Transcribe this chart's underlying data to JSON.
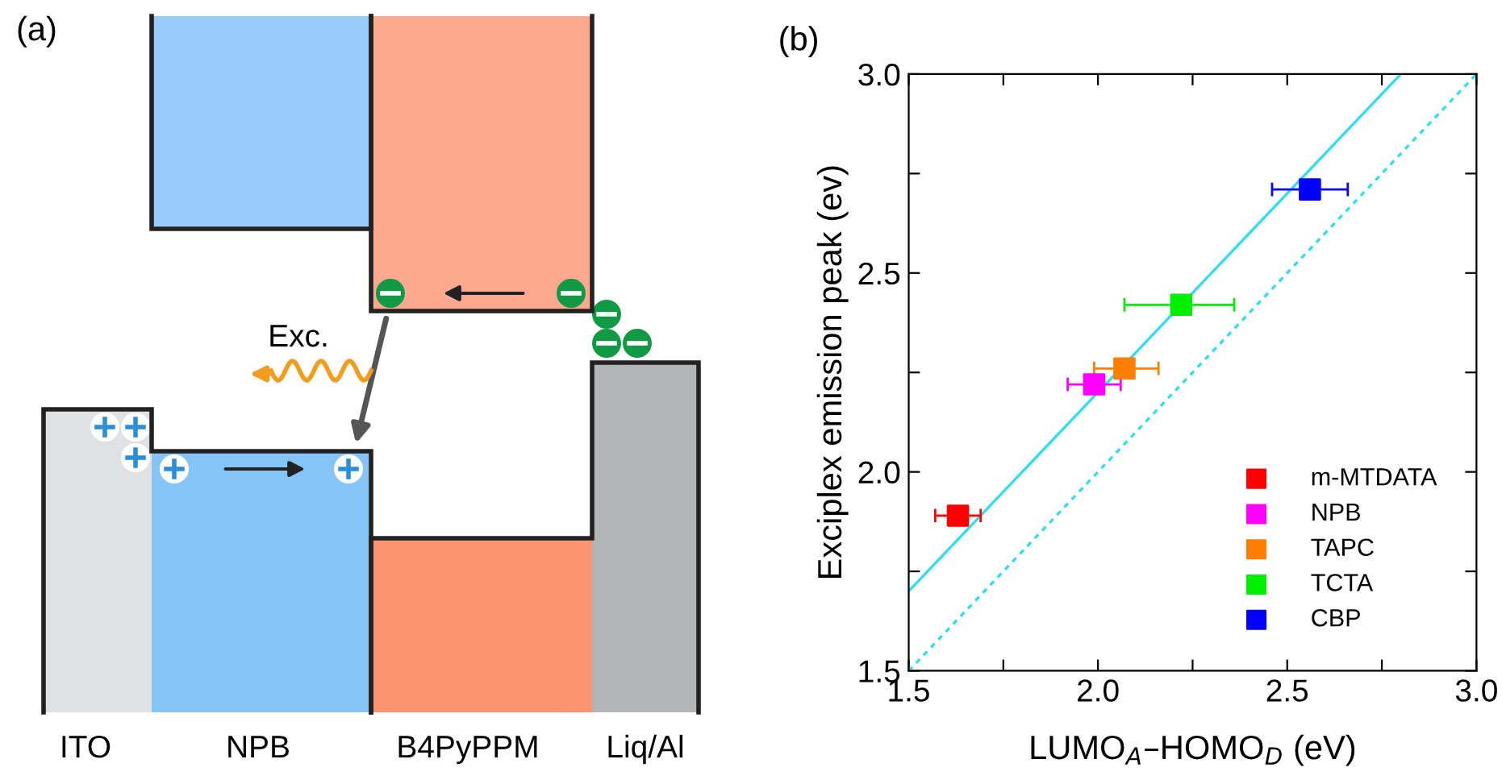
{
  "chart_data": [
    {
      "type": "other",
      "title": "(a)",
      "categories": [
        "ITO",
        "NPB",
        "B4PyPPM",
        "Liq/Al"
      ],
      "annotations": [
        "Exc."
      ]
    },
    {
      "type": "scatter",
      "title": "(b)",
      "xlabel": "LUMO$_{A}$–HOMO$_{D}$ (eV)",
      "ylabel": "Exciplex emission peak (ev)",
      "xlim": [
        1.5,
        3.0
      ],
      "ylim": [
        1.5,
        3.0
      ],
      "xticks": [
        {
          "value": 1.5,
          "label": "1.5"
        },
        {
          "value": 1.75,
          "label": null
        },
        {
          "value": 2.0,
          "label": "2.0"
        },
        {
          "value": 2.25,
          "label": null
        },
        {
          "value": 2.5,
          "label": "2.5"
        },
        {
          "value": 2.75,
          "label": null
        },
        {
          "value": 3.0,
          "label": "3.0"
        }
      ],
      "yticks": [
        {
          "value": 1.5,
          "label": "1.5"
        },
        {
          "value": 1.75,
          "label": null
        },
        {
          "value": 2.0,
          "label": "2.0"
        },
        {
          "value": 2.25,
          "label": null
        },
        {
          "value": 2.5,
          "label": "2.5"
        },
        {
          "value": 2.75,
          "label": null
        },
        {
          "value": 3.0,
          "label": "3.0"
        }
      ],
      "marker": "square",
      "grid": false,
      "legend": "bottom right",
      "series": [
        {
          "type": "line",
          "color": "#33ddee",
          "x": [
            1.5,
            2.8
          ],
          "values": [
            1.7,
            3.0
          ],
          "line_style": "solid",
          "marker": "none"
        },
        {
          "type": "line",
          "color": "#33ddee",
          "x": [
            1.5,
            3.0
          ],
          "values": [
            1.5,
            3.0
          ],
          "line_style": "dashed",
          "marker": "none"
        },
        {
          "name": "m-MTDATA",
          "color": "#ff0000",
          "x": [
            1.63
          ],
          "values": [
            1.89
          ],
          "xerrors": [
            [
              1.57,
              1.69
            ]
          ]
        },
        {
          "name": "NPB",
          "color": "#ff00ff",
          "x": [
            1.99
          ],
          "values": [
            2.22
          ],
          "xerrors": [
            [
              1.92,
              2.06
            ]
          ]
        },
        {
          "name": "TAPC",
          "color": "#ff7f00",
          "x": [
            2.07
          ],
          "values": [
            2.26
          ],
          "xerrors": [
            [
              1.99,
              2.16
            ]
          ]
        },
        {
          "name": "TCTA",
          "color": "#00ee00",
          "x": [
            2.22
          ],
          "values": [
            2.42
          ],
          "xerrors": [
            [
              2.07,
              2.36
            ]
          ]
        },
        {
          "name": "CBP",
          "color": "#0000ff",
          "x": [
            2.56
          ],
          "values": [
            2.71
          ],
          "xerrors": [
            [
              2.46,
              2.66
            ]
          ]
        }
      ]
    }
  ]
}
